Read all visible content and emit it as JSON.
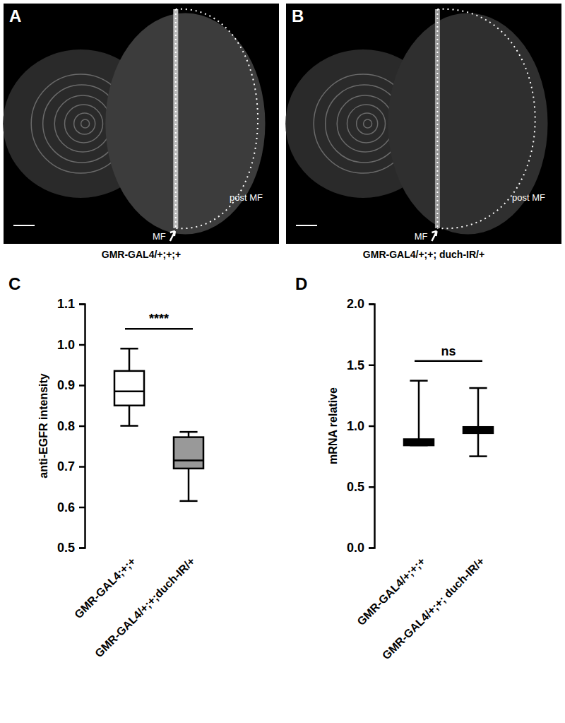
{
  "image_panels": [
    {
      "letter": "A",
      "labels": [
        "MF",
        "post MF"
      ],
      "caption": "GMR-GAL4/+;+;+"
    },
    {
      "letter": "B",
      "labels": [
        "MF",
        "post MF"
      ],
      "caption": "GMR-GAL4/+;+; duch-IR/+"
    }
  ],
  "chart_data": [
    {
      "type": "box",
      "letter": "C",
      "y_label": "anti-EGFR intensity",
      "categories": [
        "GMR-GAL4;+;+",
        "GMR-GAL4/+;+;duch-IR/+"
      ],
      "boxes": [
        {
          "min": 0.8,
          "q1": 0.85,
          "median": 0.885,
          "q3": 0.935,
          "max": 0.99
        },
        {
          "min": 0.615,
          "q1": 0.695,
          "median": 0.715,
          "q3": 0.772,
          "max": 0.785
        }
      ],
      "colors": [
        "#ffffff",
        "#999999"
      ],
      "ylim": [
        0.5,
        1.1
      ],
      "yticks": [
        0.5,
        0.6,
        0.7,
        0.8,
        0.9,
        {
          "value": 1,
          "label": "1.0"
        },
        1.1
      ],
      "annotation": "****"
    },
    {
      "type": "box",
      "letter": "D",
      "y_label": "mRNA relative",
      "categories": [
        "GMR-GAL4/+;+;+",
        "GMR-GAL4/+;+; duch-IR/+"
      ],
      "boxes": [
        {
          "min": 0.84,
          "q1": 0.84,
          "median": 0.86,
          "q3": 0.89,
          "max": 1.37
        },
        {
          "min": 0.75,
          "q1": 0.94,
          "median": 0.96,
          "q3": 0.99,
          "max": 1.31
        }
      ],
      "colors": [
        "#000000",
        "#000000"
      ],
      "ylim": [
        0,
        2
      ],
      "yticks": [
        {
          "value": 0,
          "label": "0.0"
        },
        0.5,
        {
          "value": 1,
          "label": "1.0"
        },
        1.5,
        {
          "value": 2,
          "label": "2.0"
        }
      ],
      "annotation": "ns"
    }
  ]
}
